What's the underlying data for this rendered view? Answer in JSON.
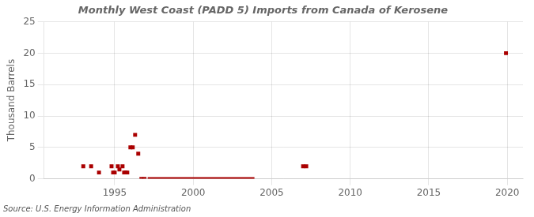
{
  "chart_data": {
    "type": "scatter",
    "title": "Monthly West Coast (PADD 5) Imports from Canada of Kerosene",
    "ylabel": "Thousand Barrels",
    "source": "Source: U.S. Energy Information Administration",
    "xlim": [
      1990.5,
      2021
    ],
    "xticks": [
      1995,
      2000,
      2005,
      2010,
      2015,
      2020
    ],
    "ylim": [
      0,
      25
    ],
    "yticks": [
      0,
      5,
      10,
      15,
      20,
      25
    ],
    "grid": true,
    "series": [
      {
        "type": "scatter",
        "color": "#aa0000",
        "marker": "square",
        "x": [
          1993.0,
          1993.5,
          1994.0,
          1994.8,
          1994.9,
          1995.0,
          1995.2,
          1995.3,
          1995.5,
          1995.6,
          1995.7,
          1995.8,
          1996.0,
          1996.15,
          1996.3,
          1996.5,
          2007.0,
          2007.2,
          2019.92
        ],
        "values": [
          2.0,
          2.0,
          1.0,
          2.0,
          1.0,
          1.0,
          2.0,
          1.5,
          2.0,
          1.0,
          1.0,
          1.0,
          5.0,
          5.0,
          7.0,
          4.0,
          2.0,
          2.0,
          20.0
        ]
      },
      {
        "type": "scatter",
        "color": "#aa0000",
        "marker": "square",
        "x": [
          1996.7,
          1996.9
        ],
        "values": [
          0.0,
          0.0
        ]
      },
      {
        "type": "line",
        "color": "#aa0000",
        "line_style": "solid",
        "x": [
          1997.1,
          2003.9
        ],
        "values": [
          0,
          0
        ]
      }
    ]
  }
}
